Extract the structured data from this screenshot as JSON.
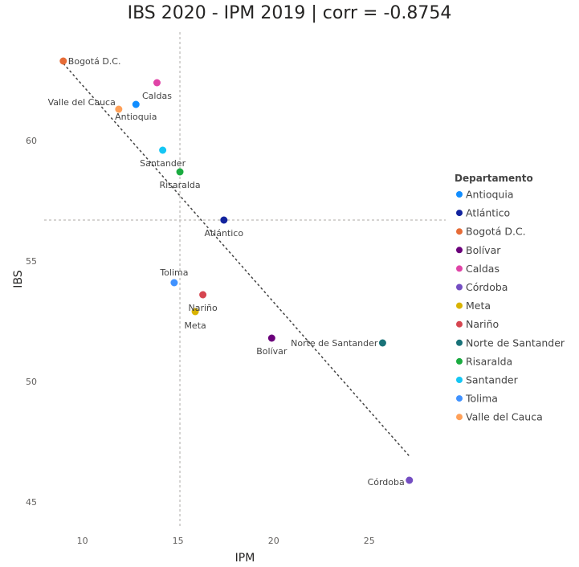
{
  "chart_data": {
    "type": "scatter",
    "title": "IBS 2020 - IPM 2019 | corr = -0.8754",
    "xlabel": "IPM",
    "ylabel": "IBS",
    "xlim": [
      8,
      29
    ],
    "ylim": [
      44,
      64.5
    ],
    "xticks": [
      10,
      15,
      20,
      25
    ],
    "yticks": [
      45,
      50,
      55,
      60
    ],
    "reference_lines": {
      "x": 15.1,
      "y": 56.7
    },
    "trendline": {
      "x": [
        9.0,
        27.1
      ],
      "y": [
        63.2,
        46.9
      ]
    },
    "legend": {
      "title": "Departamento",
      "position": "right"
    },
    "points": [
      {
        "name": "Antioquia",
        "x": 12.8,
        "y": 61.5,
        "color": "#118dff"
      },
      {
        "name": "Atlántico",
        "x": 17.4,
        "y": 56.7,
        "color": "#12239e"
      },
      {
        "name": "Bogotá D.C.",
        "x": 9.0,
        "y": 63.3,
        "color": "#e66c37"
      },
      {
        "name": "Bolívar",
        "x": 19.9,
        "y": 51.8,
        "color": "#6b007b"
      },
      {
        "name": "Caldas",
        "x": 13.9,
        "y": 62.4,
        "color": "#e044a7"
      },
      {
        "name": "Córdoba",
        "x": 27.1,
        "y": 45.9,
        "color": "#744ec2"
      },
      {
        "name": "Meta",
        "x": 15.9,
        "y": 52.9,
        "color": "#d9b300"
      },
      {
        "name": "Nariño",
        "x": 16.3,
        "y": 53.6,
        "color": "#d64550"
      },
      {
        "name": "Norte de Santander",
        "x": 25.7,
        "y": 51.6,
        "color": "#197278"
      },
      {
        "name": "Risaralda",
        "x": 15.1,
        "y": 58.7,
        "color": "#1aab40"
      },
      {
        "name": "Santander",
        "x": 14.2,
        "y": 59.6,
        "color": "#15c6f4"
      },
      {
        "name": "Tolima",
        "x": 14.8,
        "y": 54.1,
        "color": "#4092ff"
      },
      {
        "name": "Valle del Cauca",
        "x": 11.9,
        "y": 61.3,
        "color": "#ffa058"
      }
    ]
  }
}
